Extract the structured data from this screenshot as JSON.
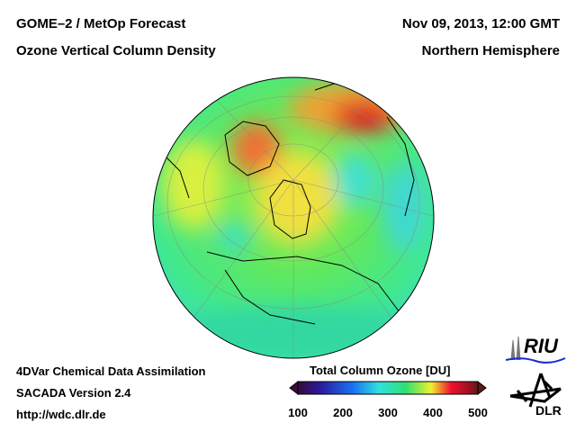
{
  "header": {
    "title_line1": "GOME–2 / MetOp Forecast",
    "title_line2": "Ozone Vertical Column Density",
    "date": "Nov 09, 2013, 12:00 GMT",
    "region": "Northern Hemisphere"
  },
  "footer": {
    "line1": "4DVar Chemical Data Assimilation",
    "line2": "SACADA Version 2.4",
    "url": "http://wdc.dlr.de"
  },
  "colorbar": {
    "title": "Total Column Ozone [DU]",
    "ticks": [
      "100",
      "200",
      "300",
      "400",
      "500"
    ],
    "colors": [
      "#3a0a3a",
      "#2a1a9a",
      "#1a6ef0",
      "#30e0e0",
      "#30e070",
      "#f0f030",
      "#f08030",
      "#f01030",
      "#7a1a1a"
    ]
  },
  "logos": {
    "riu": "RIU",
    "dlr": "DLR"
  }
}
